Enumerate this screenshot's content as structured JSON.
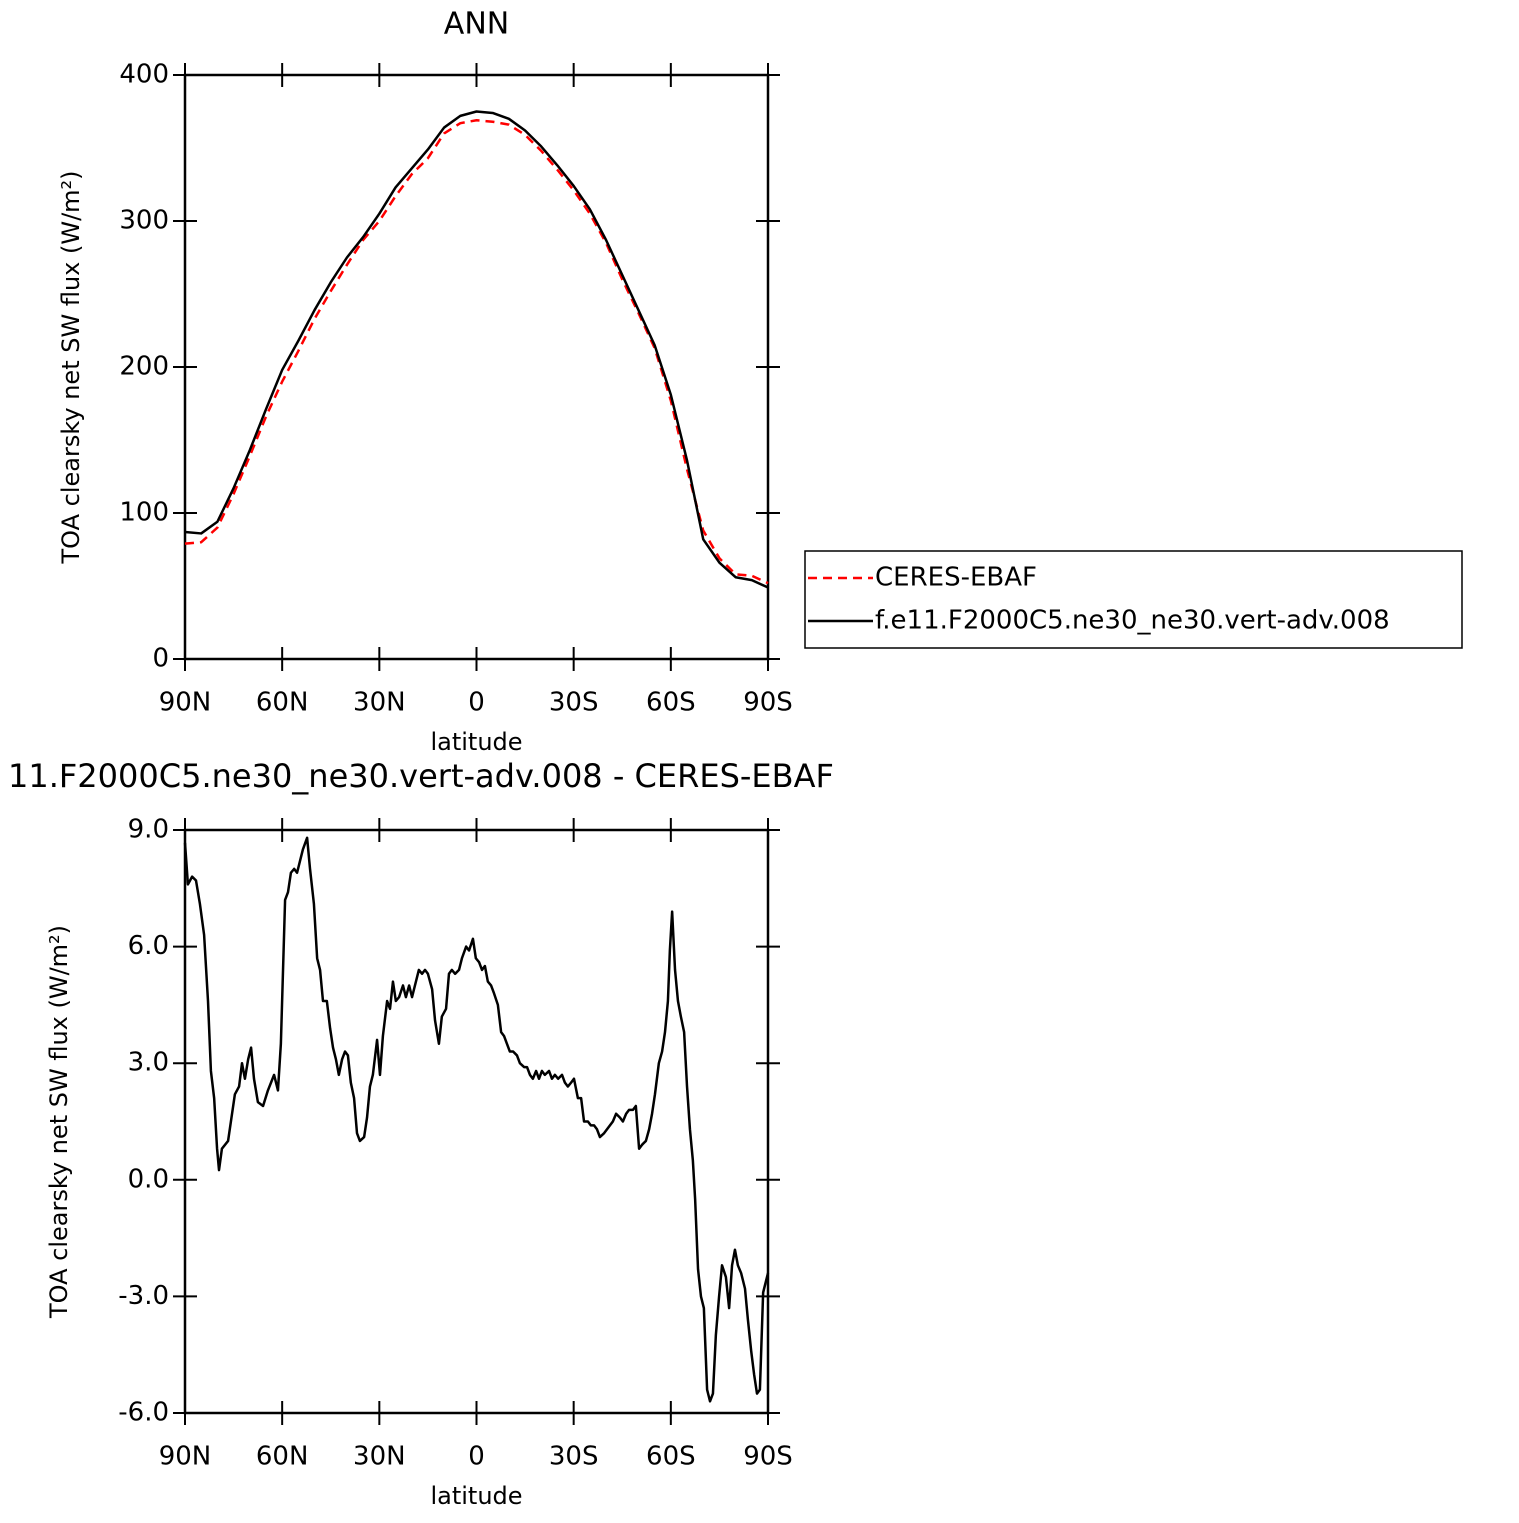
{
  "chart_data": [
    {
      "type": "line",
      "title": "ANN",
      "xlabel": "latitude",
      "ylabel": "TOA clearsky net SW flux (W/m²)",
      "x": [
        90,
        85,
        80,
        75,
        70,
        65,
        60,
        55,
        50,
        45,
        40,
        35,
        30,
        25,
        20,
        15,
        10,
        5,
        0,
        -5,
        -10,
        -15,
        -20,
        -25,
        -30,
        -35,
        -40,
        -45,
        -50,
        -55,
        -60,
        -65,
        -70,
        -75,
        -80,
        -85,
        -90
      ],
      "series": [
        {
          "name": "CERES-EBAF",
          "color": "#ff0000",
          "linestyle": "dashed",
          "values": [
            79,
            80,
            90,
            113,
            139,
            166,
            190,
            211,
            233,
            252,
            270,
            287,
            300,
            317,
            332,
            343,
            360,
            367,
            369,
            368,
            366,
            359,
            348,
            335,
            321,
            305,
            285,
            260,
            237,
            213,
            177,
            130,
            88,
            69,
            58,
            57,
            52
          ]
        },
        {
          "name": "f.e11.F2000C5.ne30_ne30.vert-adv.008",
          "color": "#000000",
          "linestyle": "solid",
          "values": [
            87,
            86,
            94,
            117,
            143,
            171,
            198,
            218,
            239,
            258,
            275,
            289,
            305,
            323,
            336,
            349,
            364,
            372,
            375,
            374,
            370,
            362,
            351,
            338,
            324,
            308,
            287,
            263,
            239,
            215,
            181,
            136,
            82,
            66,
            56,
            54,
            49
          ]
        }
      ],
      "xlim": [
        90,
        -90
      ],
      "xticks": [
        {
          "value": 90,
          "label": "90N"
        },
        {
          "value": 60,
          "label": "60N"
        },
        {
          "value": 30,
          "label": "30N"
        },
        0,
        {
          "value": -30,
          "label": "30S"
        },
        {
          "value": -60,
          "label": "60S"
        },
        {
          "value": -90,
          "label": "90S"
        }
      ],
      "ylim": [
        0,
        400
      ],
      "yticks": [
        0,
        100,
        200,
        300,
        400
      ],
      "legend": "right"
    },
    {
      "type": "line",
      "title": "11.F2000C5.ne30_ne30.vert-adv.008 - CERES-EBAF",
      "xlabel": "latitude",
      "ylabel": "TOA clearsky net SW flux (W/m²)",
      "color": "#000000",
      "x": [
        90,
        89.1,
        87.8,
        86.6,
        85.4,
        84.1,
        82.9,
        82.0,
        81.0,
        80.1,
        79.5,
        78.6,
        76.7,
        74.6,
        73.3,
        72.4,
        71.5,
        70.5,
        69.6,
        68.7,
        67.5,
        65.9,
        64.4,
        62.5,
        61.3,
        60.4,
        59.1,
        58.2,
        57.3,
        56.3,
        55.4,
        54.5,
        53.6,
        52.3,
        51.4,
        50.2,
        49.2,
        48.3,
        47.4,
        46.2,
        45.2,
        44.3,
        43.4,
        42.5,
        41.5,
        40.6,
        39.7,
        38.8,
        37.8,
        36.9,
        36.0,
        34.7,
        33.8,
        32.9,
        32.0,
        30.7,
        29.8,
        28.9,
        27.6,
        26.7,
        25.8,
        24.9,
        23.9,
        22.7,
        21.8,
        20.8,
        19.9,
        19.0,
        17.8,
        16.8,
        15.9,
        15.0,
        13.7,
        12.8,
        11.6,
        10.7,
        9.4,
        8.5,
        7.6,
        6.6,
        5.4,
        4.5,
        3.2,
        2.3,
        1.1,
        0.2,
        -0.8,
        -1.7,
        -2.6,
        -3.5,
        -4.5,
        -5.4,
        -6.6,
        -7.6,
        -8.5,
        -9.4,
        -10.3,
        -11.3,
        -12.5,
        -13.4,
        -14.7,
        -15.6,
        -16.5,
        -17.4,
        -18.4,
        -19.3,
        -20.2,
        -21.1,
        -22.4,
        -23.3,
        -24.2,
        -25.2,
        -26.4,
        -27.3,
        -28.2,
        -29.2,
        -30.1,
        -31.3,
        -32.3,
        -33.2,
        -34.4,
        -35.3,
        -36.3,
        -37.2,
        -38.1,
        -39.4,
        -40.3,
        -41.2,
        -42.1,
        -43.1,
        -44.3,
        -45.2,
        -46.2,
        -47.1,
        -48.3,
        -49.2,
        -50.2,
        -51.1,
        -52.3,
        -53.3,
        -54.2,
        -55.1,
        -56.3,
        -57.3,
        -58.2,
        -59.1,
        -59.7,
        -60.4,
        -61.3,
        -62.2,
        -63.1,
        -64.1,
        -65.0,
        -65.9,
        -66.8,
        -67.5,
        -68.4,
        -69.3,
        -70.2,
        -71.2,
        -72.1,
        -73.0,
        -73.9,
        -74.9,
        -75.8,
        -77.0,
        -78.0,
        -78.9,
        -79.8,
        -80.7,
        -81.7,
        -82.9,
        -83.8,
        -84.8,
        -85.7,
        -86.6,
        -87.5,
        -88.5,
        -89.4,
        -90
      ],
      "values": [
        8.67,
        7.6,
        7.8,
        7.7,
        7.1,
        6.3,
        4.6,
        2.8,
        2.1,
        0.8,
        0.25,
        0.8,
        1.0,
        2.2,
        2.4,
        3.0,
        2.6,
        3.1,
        3.4,
        2.6,
        2.0,
        1.9,
        2.3,
        2.7,
        2.3,
        3.5,
        7.2,
        7.4,
        7.9,
        8.0,
        7.9,
        8.2,
        8.5,
        8.8,
        8.0,
        7.1,
        5.7,
        5.4,
        4.6,
        4.6,
        3.9,
        3.4,
        3.1,
        2.7,
        3.1,
        3.3,
        3.2,
        2.5,
        2.1,
        1.2,
        1.0,
        1.1,
        1.6,
        2.4,
        2.7,
        3.6,
        2.7,
        3.7,
        4.6,
        4.4,
        5.1,
        4.6,
        4.7,
        5.0,
        4.7,
        5.0,
        4.7,
        5.0,
        5.4,
        5.3,
        5.4,
        5.3,
        4.9,
        4.1,
        3.5,
        4.2,
        4.4,
        5.3,
        5.4,
        5.3,
        5.4,
        5.7,
        6.0,
        5.9,
        6.2,
        5.7,
        5.6,
        5.4,
        5.5,
        5.1,
        5.0,
        4.8,
        4.5,
        3.8,
        3.7,
        3.5,
        3.3,
        3.3,
        3.2,
        3.0,
        2.9,
        2.9,
        2.7,
        2.6,
        2.8,
        2.6,
        2.8,
        2.7,
        2.8,
        2.6,
        2.7,
        2.6,
        2.7,
        2.5,
        2.4,
        2.5,
        2.6,
        2.1,
        2.1,
        1.5,
        1.5,
        1.4,
        1.4,
        1.3,
        1.1,
        1.2,
        1.3,
        1.4,
        1.5,
        1.7,
        1.6,
        1.5,
        1.7,
        1.8,
        1.8,
        1.9,
        0.8,
        0.9,
        1.0,
        1.3,
        1.7,
        2.2,
        3.0,
        3.3,
        3.8,
        4.6,
        5.9,
        6.9,
        5.4,
        4.6,
        4.2,
        3.8,
        2.4,
        1.3,
        0.5,
        -0.5,
        -2.3,
        -3.0,
        -3.3,
        -5.4,
        -5.7,
        -5.5,
        -4.0,
        -3.0,
        -2.2,
        -2.5,
        -3.3,
        -2.2,
        -1.8,
        -2.2,
        -2.4,
        -2.8,
        -3.6,
        -4.4,
        -5.0,
        -5.5,
        -5.4,
        -2.9,
        -2.6,
        -2.4
      ],
      "xlim": [
        90,
        -90
      ],
      "xticks": [
        {
          "value": 90,
          "label": "90N"
        },
        {
          "value": 60,
          "label": "60N"
        },
        {
          "value": 30,
          "label": "30N"
        },
        0,
        {
          "value": -30,
          "label": "30S"
        },
        {
          "value": -60,
          "label": "60S"
        },
        {
          "value": -90,
          "label": "90S"
        }
      ],
      "ylim": [
        -6,
        9
      ],
      "yticks": [
        {
          "value": -6,
          "label": "-6.0"
        },
        {
          "value": -3,
          "label": "-3.0"
        },
        {
          "value": 0,
          "label": "0.0"
        },
        {
          "value": 3,
          "label": "3.0"
        },
        {
          "value": 6,
          "label": "6.0"
        },
        {
          "value": 9,
          "label": "9.0"
        }
      ]
    }
  ]
}
